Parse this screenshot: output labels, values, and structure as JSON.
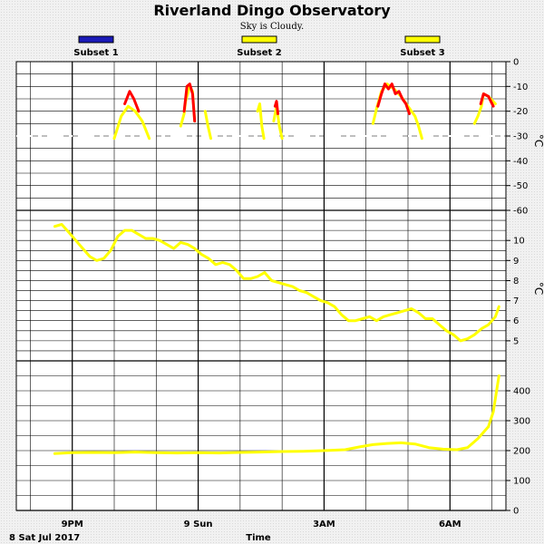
{
  "chart_data": {
    "type": "line",
    "title": "Riverland Dingo Observatory",
    "subtitle": "Sky is Cloudy.",
    "legend": [
      {
        "name": "Subset 1",
        "color": "#1a1ab8"
      },
      {
        "name": "Subset 2",
        "color": "#ffff00"
      },
      {
        "name": "Subset 3",
        "color": "#ffff00"
      }
    ],
    "xlabel": "Time",
    "date_label": "8 Sat Jul 2017",
    "x_range": [
      "2017-07-08T19:40",
      "2017-07-09T07:20"
    ],
    "x_ticks": [
      {
        "t": "2017-07-08T21:00",
        "label": "9PM"
      },
      {
        "t": "2017-07-09T00:00",
        "label": "9 Sun"
      },
      {
        "t": "2017-07-09T03:00",
        "label": "3AM"
      },
      {
        "t": "2017-07-09T06:00",
        "label": "6AM"
      }
    ],
    "grid": true,
    "panels": [
      {
        "name": "sky-temperature",
        "ylabel": "°C",
        "ylim": [
          -60,
          0
        ],
        "yticks": [
          0,
          -10,
          -20,
          -30,
          -40,
          -50,
          -60
        ],
        "ytick_labels": [
          "0",
          "-10",
          "-20",
          "-30",
          "-40",
          "-50",
          "-60"
        ],
        "series": [
          {
            "color": "#ffff00",
            "points": [
              [
                "2017-07-08T22:00",
                -31
              ],
              [
                "2017-07-08T22:10",
                -22
              ],
              [
                "2017-07-08T22:20",
                -18
              ],
              [
                "2017-07-08T22:30",
                -20
              ],
              [
                "2017-07-08T22:40",
                -24
              ],
              [
                "2017-07-08T22:50",
                -31
              ]
            ]
          },
          {
            "color": "#ff0000",
            "points": [
              [
                "2017-07-08T22:15",
                -17
              ],
              [
                "2017-07-08T22:22",
                -12
              ],
              [
                "2017-07-08T22:28",
                -15
              ],
              [
                "2017-07-08T22:35",
                -20
              ]
            ]
          },
          {
            "color": "#ffff00",
            "points": [
              [
                "2017-07-08T23:35",
                -26
              ],
              [
                "2017-07-08T23:40",
                -21
              ],
              [
                "2017-07-08T23:42",
                -16
              ],
              [
                "2017-07-08T23:48",
                -10
              ],
              [
                "2017-07-08T23:52",
                -12
              ],
              [
                "2017-07-08T23:55",
                -24
              ]
            ]
          },
          {
            "color": "#ff0000",
            "points": [
              [
                "2017-07-08T23:40",
                -20
              ],
              [
                "2017-07-08T23:44",
                -10
              ],
              [
                "2017-07-08T23:48",
                -9
              ],
              [
                "2017-07-08T23:52",
                -13
              ],
              [
                "2017-07-08T23:55",
                -24
              ]
            ]
          },
          {
            "color": "#ffff00",
            "points": [
              [
                "2017-07-09T00:10",
                -20
              ],
              [
                "2017-07-09T00:14",
                -26
              ],
              [
                "2017-07-09T00:18",
                -31
              ]
            ]
          },
          {
            "color": "#ffff00",
            "points": [
              [
                "2017-07-09T01:25",
                -20
              ],
              [
                "2017-07-09T01:28",
                -17
              ],
              [
                "2017-07-09T01:31",
                -26
              ],
              [
                "2017-07-09T01:34",
                -31
              ]
            ]
          },
          {
            "color": "#ffff00",
            "points": [
              [
                "2017-07-09T01:48",
                -24
              ],
              [
                "2017-07-09T01:52",
                -18
              ],
              [
                "2017-07-09T01:56",
                -26
              ],
              [
                "2017-07-09T02:00",
                -31
              ]
            ]
          },
          {
            "color": "#ff0000",
            "points": [
              [
                "2017-07-09T01:50",
                -18
              ],
              [
                "2017-07-09T01:52",
                -16
              ],
              [
                "2017-07-09T01:54",
                -21
              ]
            ]
          },
          {
            "color": "#ffff00",
            "points": [
              [
                "2017-07-09T04:10",
                -25
              ],
              [
                "2017-07-09T04:15",
                -19
              ],
              [
                "2017-07-09T04:22",
                -12
              ],
              [
                "2017-07-09T04:30",
                -9
              ],
              [
                "2017-07-09T04:40",
                -11
              ],
              [
                "2017-07-09T04:50",
                -14
              ],
              [
                "2017-07-09T05:00",
                -18
              ],
              [
                "2017-07-09T05:10",
                -22
              ],
              [
                "2017-07-09T05:15",
                -26
              ],
              [
                "2017-07-09T05:20",
                -31
              ]
            ]
          },
          {
            "color": "#ff0000",
            "points": [
              [
                "2017-07-09T04:17",
                -18
              ],
              [
                "2017-07-09T04:22",
                -13
              ],
              [
                "2017-07-09T04:27",
                -9
              ],
              [
                "2017-07-09T04:32",
                -11
              ],
              [
                "2017-07-09T04:37",
                -9
              ],
              [
                "2017-07-09T04:42",
                -13
              ],
              [
                "2017-07-09T04:47",
                -12
              ],
              [
                "2017-07-09T04:52",
                -15
              ],
              [
                "2017-07-09T04:57",
                -17
              ],
              [
                "2017-07-09T05:02",
                -21
              ]
            ]
          },
          {
            "color": "#ffff00",
            "points": [
              [
                "2017-07-09T06:35",
                -25
              ],
              [
                "2017-07-09T06:40",
                -22
              ],
              [
                "2017-07-09T06:45",
                -18
              ],
              [
                "2017-07-09T06:48",
                -13
              ],
              [
                "2017-07-09T06:55",
                -14
              ],
              [
                "2017-07-09T07:05",
                -17
              ]
            ]
          },
          {
            "color": "#ff0000",
            "points": [
              [
                "2017-07-09T06:44",
                -17
              ],
              [
                "2017-07-09T06:48",
                -13
              ],
              [
                "2017-07-09T06:55",
                -14
              ],
              [
                "2017-07-09T07:02",
                -18
              ]
            ]
          }
        ],
        "baseline_dash": {
          "color": "#ffffff",
          "y": -30,
          "x_start": "2017-07-08T19:40",
          "x_end": "2017-07-09T07:20"
        }
      },
      {
        "name": "ambient-temperature",
        "ylabel": "°C",
        "ylim": [
          4,
          11.5
        ],
        "yticks": [
          5,
          6,
          7,
          8,
          9,
          10
        ],
        "ytick_labels": [
          "5",
          "6",
          "7",
          "8",
          "9",
          "10"
        ],
        "series": [
          {
            "color": "#ffff00",
            "points": [
              [
                "2017-07-08T20:35",
                10.7
              ],
              [
                "2017-07-08T20:45",
                10.8
              ],
              [
                "2017-07-08T20:55",
                10.4
              ],
              [
                "2017-07-08T21:05",
                10.0
              ],
              [
                "2017-07-08T21:15",
                9.6
              ],
              [
                "2017-07-08T21:25",
                9.2
              ],
              [
                "2017-07-08T21:35",
                9.0
              ],
              [
                "2017-07-08T21:45",
                9.1
              ],
              [
                "2017-07-08T21:55",
                9.5
              ],
              [
                "2017-07-08T22:05",
                10.2
              ],
              [
                "2017-07-08T22:15",
                10.5
              ],
              [
                "2017-07-08T22:25",
                10.5
              ],
              [
                "2017-07-08T22:35",
                10.3
              ],
              [
                "2017-07-08T22:45",
                10.1
              ],
              [
                "2017-07-08T22:55",
                10.1
              ],
              [
                "2017-07-08T23:05",
                10.0
              ],
              [
                "2017-07-08T23:15",
                9.8
              ],
              [
                "2017-07-08T23:25",
                9.6
              ],
              [
                "2017-07-08T23:35",
                9.9
              ],
              [
                "2017-07-08T23:45",
                9.8
              ],
              [
                "2017-07-08T23:55",
                9.6
              ],
              [
                "2017-07-09T00:05",
                9.3
              ],
              [
                "2017-07-09T00:15",
                9.1
              ],
              [
                "2017-07-09T00:25",
                8.8
              ],
              [
                "2017-07-09T00:35",
                8.9
              ],
              [
                "2017-07-09T00:45",
                8.8
              ],
              [
                "2017-07-09T00:55",
                8.5
              ],
              [
                "2017-07-09T01:05",
                8.1
              ],
              [
                "2017-07-09T01:15",
                8.1
              ],
              [
                "2017-07-09T01:25",
                8.2
              ],
              [
                "2017-07-09T01:35",
                8.4
              ],
              [
                "2017-07-09T01:45",
                8.0
              ],
              [
                "2017-07-09T01:55",
                7.9
              ],
              [
                "2017-07-09T02:05",
                7.8
              ],
              [
                "2017-07-09T02:15",
                7.7
              ],
              [
                "2017-07-09T02:25",
                7.5
              ],
              [
                "2017-07-09T02:35",
                7.4
              ],
              [
                "2017-07-09T02:45",
                7.2
              ],
              [
                "2017-07-09T02:55",
                7.0
              ],
              [
                "2017-07-09T03:05",
                6.9
              ],
              [
                "2017-07-09T03:15",
                6.7
              ],
              [
                "2017-07-09T03:25",
                6.3
              ],
              [
                "2017-07-09T03:35",
                6.0
              ],
              [
                "2017-07-09T03:45",
                6.0
              ],
              [
                "2017-07-09T03:55",
                6.1
              ],
              [
                "2017-07-09T04:05",
                6.2
              ],
              [
                "2017-07-09T04:15",
                6.0
              ],
              [
                "2017-07-09T04:25",
                6.2
              ],
              [
                "2017-07-09T04:35",
                6.3
              ],
              [
                "2017-07-09T04:45",
                6.4
              ],
              [
                "2017-07-09T04:55",
                6.5
              ],
              [
                "2017-07-09T05:05",
                6.6
              ],
              [
                "2017-07-09T05:15",
                6.4
              ],
              [
                "2017-07-09T05:25",
                6.1
              ],
              [
                "2017-07-09T05:35",
                6.1
              ],
              [
                "2017-07-09T05:45",
                5.8
              ],
              [
                "2017-07-09T05:55",
                5.5
              ],
              [
                "2017-07-09T06:05",
                5.3
              ],
              [
                "2017-07-09T06:15",
                5.0
              ],
              [
                "2017-07-09T06:25",
                5.1
              ],
              [
                "2017-07-09T06:35",
                5.3
              ],
              [
                "2017-07-09T06:45",
                5.6
              ],
              [
                "2017-07-09T06:55",
                5.8
              ],
              [
                "2017-07-09T07:05",
                6.2
              ],
              [
                "2017-07-09T07:10",
                6.7
              ]
            ]
          }
        ]
      },
      {
        "name": "sky-brightness",
        "ylabel": "",
        "ylim": [
          0,
          500
        ],
        "yticks": [
          0,
          100,
          200,
          300,
          400
        ],
        "ytick_labels": [
          "0",
          "100",
          "200",
          "300",
          "400"
        ],
        "series": [
          {
            "color": "#ffff00",
            "points": [
              [
                "2017-07-08T20:35",
                190
              ],
              [
                "2017-07-08T21:00",
                193
              ],
              [
                "2017-07-08T21:30",
                194
              ],
              [
                "2017-07-08T22:00",
                193
              ],
              [
                "2017-07-08T22:30",
                195
              ],
              [
                "2017-07-08T23:00",
                193
              ],
              [
                "2017-07-08T23:30",
                192
              ],
              [
                "2017-07-09T00:00",
                193
              ],
              [
                "2017-07-09T00:30",
                192
              ],
              [
                "2017-07-09T01:00",
                194
              ],
              [
                "2017-07-09T01:30",
                195
              ],
              [
                "2017-07-09T02:00",
                197
              ],
              [
                "2017-07-09T02:30",
                198
              ],
              [
                "2017-07-09T03:00",
                200
              ],
              [
                "2017-07-09T03:30",
                203
              ],
              [
                "2017-07-09T03:50",
                212
              ],
              [
                "2017-07-09T04:10",
                220
              ],
              [
                "2017-07-09T04:30",
                224
              ],
              [
                "2017-07-09T04:50",
                226
              ],
              [
                "2017-07-09T05:10",
                222
              ],
              [
                "2017-07-09T05:30",
                210
              ],
              [
                "2017-07-09T05:50",
                205
              ],
              [
                "2017-07-09T06:10",
                203
              ],
              [
                "2017-07-09T06:25",
                210
              ],
              [
                "2017-07-09T06:40",
                240
              ],
              [
                "2017-07-09T06:55",
                280
              ],
              [
                "2017-07-09T07:02",
                330
              ],
              [
                "2017-07-09T07:06",
                390
              ],
              [
                "2017-07-09T07:10",
                450
              ]
            ]
          }
        ]
      }
    ]
  }
}
